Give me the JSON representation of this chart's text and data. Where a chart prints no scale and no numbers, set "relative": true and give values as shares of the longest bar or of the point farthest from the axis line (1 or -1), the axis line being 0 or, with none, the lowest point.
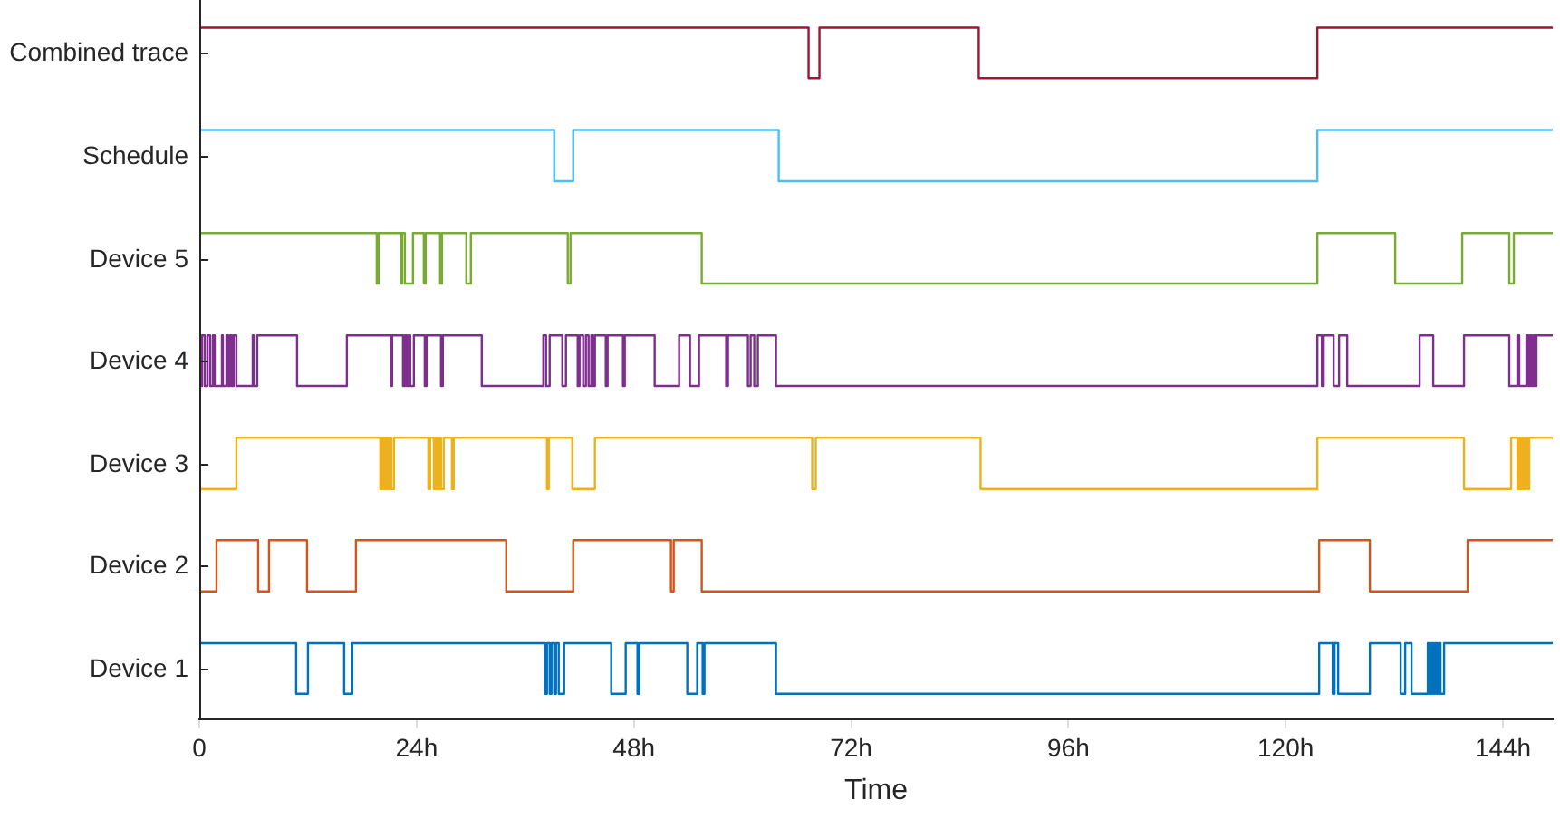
{
  "chart_data": {
    "type": "step",
    "relative": true,
    "xlabel": "Time",
    "xlim": [
      0,
      149.5
    ],
    "xticks": [
      0,
      {
        "value": 24,
        "label": "24h"
      },
      {
        "value": 48,
        "label": "48h"
      },
      {
        "value": 72,
        "label": "72h"
      },
      {
        "value": 96,
        "label": "96h"
      },
      {
        "value": 120,
        "label": "120h"
      },
      {
        "value": 144,
        "label": "144h"
      }
    ],
    "series": [
      {
        "name": "Device 1",
        "color": "#0072bd",
        "x": [
          0,
          10.7,
          12.0,
          16.0,
          16.9,
          38.2,
          38.4,
          38.7,
          38.9,
          39.2,
          39.4,
          39.7,
          40.3,
          45.5,
          47.1,
          48.4,
          48.6,
          53.9,
          55.0,
          55.6,
          55.8,
          63.7,
          123.7,
          125.2,
          125.4,
          125.8,
          129.3,
          132.7,
          133.2,
          133.9,
          135.7,
          135.9,
          136.1,
          136.3,
          136.5,
          136.7,
          136.9,
          137.1,
          137.5,
          149.5
        ],
        "values": [
          0.11,
          0.037,
          0.11,
          0.037,
          0.11,
          0.037,
          0.11,
          0.037,
          0.11,
          0.037,
          0.11,
          0.037,
          0.11,
          0.037,
          0.11,
          0.037,
          0.11,
          0.037,
          0.11,
          0.037,
          0.11,
          0.037,
          0.11,
          0.037,
          0.11,
          0.037,
          0.11,
          0.037,
          0.11,
          0.037,
          0.11,
          0.037,
          0.11,
          0.037,
          0.11,
          0.037,
          0.11,
          0.037,
          0.11,
          0.11
        ]
      },
      {
        "name": "Device 2",
        "color": "#d95319",
        "x": [
          0,
          1.9,
          6.5,
          7.7,
          11.9,
          17.3,
          33.9,
          41.3,
          52.1,
          52.4,
          55.5,
          123.7,
          129.3,
          140.1,
          149.5
        ],
        "values": [
          0.185,
          0.259,
          0.185,
          0.259,
          0.185,
          0.259,
          0.185,
          0.259,
          0.185,
          0.259,
          0.185,
          0.259,
          0.185,
          0.259,
          0.259
        ]
      },
      {
        "name": "Device 3",
        "color": "#edb120",
        "x": [
          0,
          4.1,
          20.0,
          20.2,
          20.4,
          20.6,
          20.8,
          21.0,
          21.2,
          21.5,
          25.3,
          25.5,
          25.9,
          26.1,
          26.3,
          26.5,
          26.7,
          27.0,
          27.9,
          28.1,
          38.4,
          38.6,
          41.2,
          43.7,
          67.7,
          68.1,
          86.3,
          123.5,
          139.7,
          144.9,
          145.6,
          145.8,
          145.9,
          146.1,
          146.3,
          146.5,
          146.7,
          146.9,
          149.5
        ],
        "values": [
          0.333,
          0.407,
          0.333,
          0.407,
          0.333,
          0.407,
          0.333,
          0.407,
          0.333,
          0.407,
          0.333,
          0.407,
          0.333,
          0.407,
          0.333,
          0.407,
          0.333,
          0.407,
          0.333,
          0.407,
          0.333,
          0.407,
          0.333,
          0.407,
          0.333,
          0.407,
          0.333,
          0.407,
          0.333,
          0.407,
          0.333,
          0.407,
          0.333,
          0.407,
          0.333,
          0.407,
          0.333,
          0.407,
          0.407
        ]
      },
      {
        "name": "Device 4",
        "color": "#7e2f8e",
        "x": [
          0,
          0.3,
          0.6,
          0.9,
          1.2,
          1.5,
          1.7,
          2.5,
          2.6,
          3.0,
          3.2,
          3.4,
          3.6,
          3.8,
          4.1,
          5.9,
          6.0,
          6.4,
          10.8,
          16.3,
          21.2,
          21.3,
          22.5,
          22.7,
          22.9,
          23.1,
          23.3,
          23.7,
          24.9,
          25.1,
          26.7,
          26.9,
          31.2,
          38.0,
          38.3,
          38.7,
          40.1,
          40.5,
          41.8,
          42.0,
          42.4,
          42.7,
          43.0,
          43.3,
          43.5,
          43.7,
          44.9,
          45.1,
          46.8,
          47.0,
          50.3,
          53.0,
          54.2,
          55.2,
          58.2,
          58.4,
          60.6,
          60.9,
          61.3,
          61.7,
          63.7,
          123.5,
          124.0,
          124.2,
          125.3,
          125.9,
          126.8,
          134.8,
          136.3,
          139.7,
          144.7,
          145.6,
          145.8,
          146.6,
          146.8,
          147.0,
          147.2,
          147.4,
          147.6,
          147.7,
          149.5
        ],
        "values": [
          0.482,
          0.555,
          0.482,
          0.555,
          0.482,
          0.555,
          0.482,
          0.555,
          0.482,
          0.555,
          0.482,
          0.555,
          0.482,
          0.555,
          0.482,
          0.555,
          0.482,
          0.555,
          0.482,
          0.555,
          0.482,
          0.555,
          0.482,
          0.555,
          0.482,
          0.555,
          0.482,
          0.555,
          0.482,
          0.555,
          0.482,
          0.555,
          0.482,
          0.555,
          0.482,
          0.555,
          0.482,
          0.555,
          0.482,
          0.555,
          0.482,
          0.555,
          0.482,
          0.555,
          0.482,
          0.555,
          0.482,
          0.555,
          0.482,
          0.555,
          0.482,
          0.555,
          0.482,
          0.555,
          0.482,
          0.555,
          0.482,
          0.555,
          0.482,
          0.555,
          0.482,
          0.555,
          0.482,
          0.555,
          0.482,
          0.555,
          0.482,
          0.555,
          0.482,
          0.555,
          0.482,
          0.555,
          0.482,
          0.555,
          0.482,
          0.555,
          0.482,
          0.555,
          0.482,
          0.555,
          0.555
        ]
      },
      {
        "name": "Device 5",
        "color": "#77ac30",
        "x": [
          0,
          19.6,
          19.8,
          22.3,
          22.4,
          22.7,
          23.6,
          24.8,
          25.0,
          26.6,
          26.8,
          29.5,
          30.0,
          40.7,
          41.0,
          55.5,
          123.5,
          132.1,
          139.5,
          144.7,
          145.2,
          149.5
        ],
        "values": [
          0.703,
          0.63,
          0.703,
          0.63,
          0.703,
          0.63,
          0.703,
          0.63,
          0.703,
          0.63,
          0.703,
          0.63,
          0.703,
          0.63,
          0.703,
          0.63,
          0.703,
          0.63,
          0.703,
          0.63,
          0.703,
          0.703
        ]
      },
      {
        "name": "Schedule",
        "color": "#4dbeee",
        "x": [
          0,
          39.2,
          41.3,
          64.0,
          123.5,
          149.5
        ],
        "values": [
          0.852,
          0.778,
          0.852,
          0.778,
          0.852,
          0.852
        ]
      },
      {
        "name": "Combined trace",
        "color": "#a2142f",
        "x": [
          0,
          67.3,
          68.5,
          86.1,
          123.5,
          149.5
        ],
        "values": [
          1,
          0.927,
          1,
          0.927,
          1,
          1
        ]
      }
    ]
  }
}
